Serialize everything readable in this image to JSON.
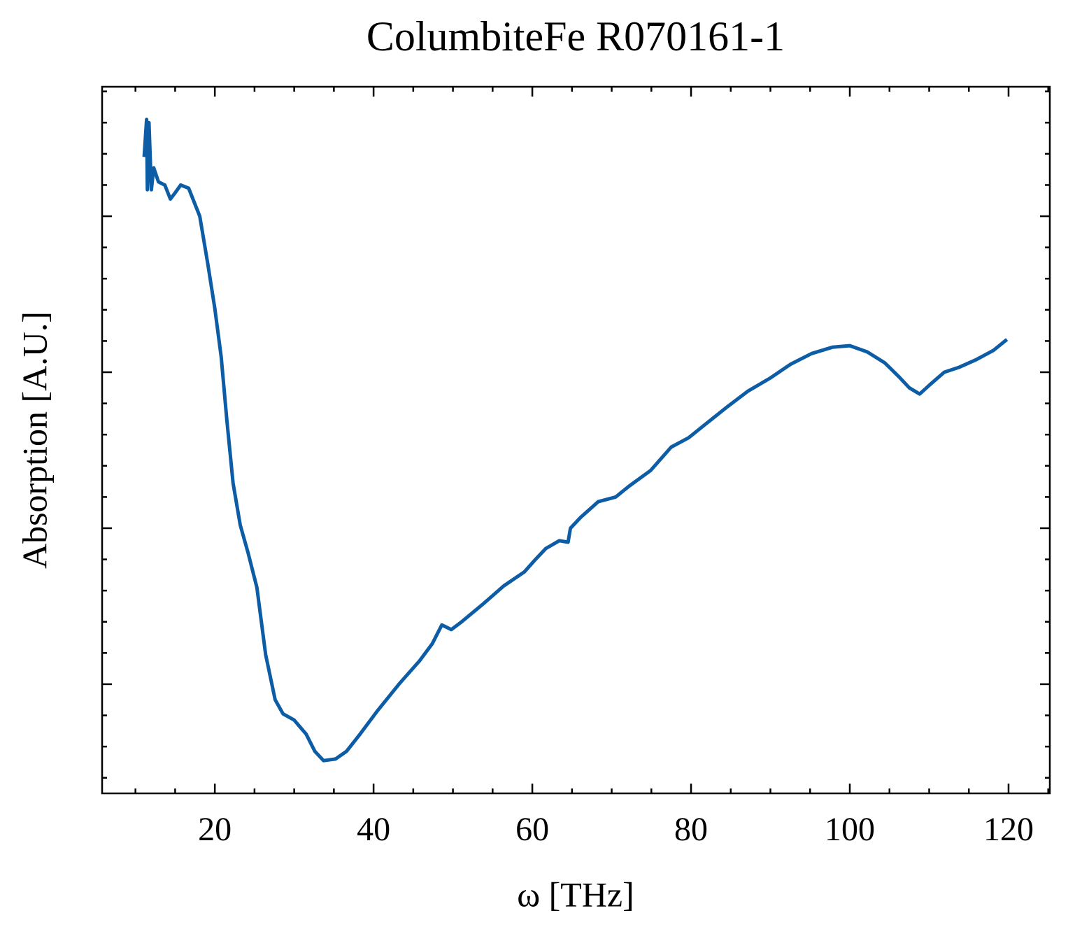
{
  "chart_data": {
    "type": "line",
    "title": "ColumbiteFe R070161-1",
    "x_label": "ω [THz]",
    "y_label": "Absorption [A.U.]",
    "color": "#0c5da5",
    "x": [
      11.1,
      11.4,
      11.5,
      11.7,
      12.0,
      12.3,
      12.9,
      13.7,
      14.4,
      15.0,
      15.7,
      16.7,
      18.1,
      19.1,
      20.0,
      20.8,
      21.5,
      22.3,
      23.2,
      24.2,
      25.3,
      26.4,
      27.6,
      28.6,
      30.0,
      31.5,
      32.6,
      33.7,
      35.2,
      36.6,
      38.3,
      40.5,
      43.2,
      45.8,
      47.4,
      48.6,
      49.8,
      51.1,
      53.7,
      56.4,
      59.0,
      60.4,
      61.7,
      63.4,
      64.5,
      64.8,
      66.1,
      68.3,
      70.5,
      72.2,
      74.9,
      77.5,
      79.7,
      81.9,
      84.6,
      87.2,
      89.9,
      92.5,
      95.2,
      97.8,
      100.0,
      102.2,
      104.4,
      106.2,
      107.5,
      108.8,
      110.1,
      111.9,
      113.7,
      115.9,
      118.1,
      119.8
    ],
    "values": [
      4.38,
      4.62,
      4.17,
      4.6,
      4.17,
      4.31,
      4.22,
      4.2,
      4.11,
      4.15,
      4.2,
      4.18,
      4.0,
      3.7,
      3.41,
      3.1,
      2.7,
      2.29,
      2.02,
      1.84,
      1.62,
      1.19,
      0.9,
      0.81,
      0.77,
      0.68,
      0.57,
      0.51,
      0.52,
      0.57,
      0.68,
      0.83,
      1.0,
      1.15,
      1.26,
      1.38,
      1.35,
      1.4,
      1.51,
      1.63,
      1.72,
      1.8,
      1.87,
      1.92,
      1.91,
      2.0,
      2.07,
      2.17,
      2.2,
      2.27,
      2.37,
      2.52,
      2.58,
      2.67,
      2.78,
      2.88,
      2.96,
      3.05,
      3.12,
      3.16,
      3.17,
      3.13,
      3.06,
      2.97,
      2.9,
      2.86,
      2.92,
      3.0,
      3.03,
      3.08,
      3.14,
      3.21
    ],
    "xlim": [
      5.8,
      125.2
    ],
    "ylim": [
      0.3,
      4.83
    ],
    "xticks": [
      20,
      40,
      60,
      80,
      100,
      120
    ],
    "yticks": [
      1,
      2,
      3,
      4
    ],
    "xminorticks": [
      10,
      15,
      25,
      30,
      35,
      45,
      50,
      55,
      65,
      70,
      75,
      85,
      90,
      95,
      105,
      110,
      115,
      125
    ],
    "yminorticks": [
      0.4,
      0.6,
      0.8,
      1.2,
      1.4,
      1.6,
      1.8,
      2.2,
      2.4,
      2.6,
      2.8,
      3.2,
      3.4,
      3.6,
      3.8,
      4.2,
      4.4,
      4.6,
      4.8
    ]
  }
}
